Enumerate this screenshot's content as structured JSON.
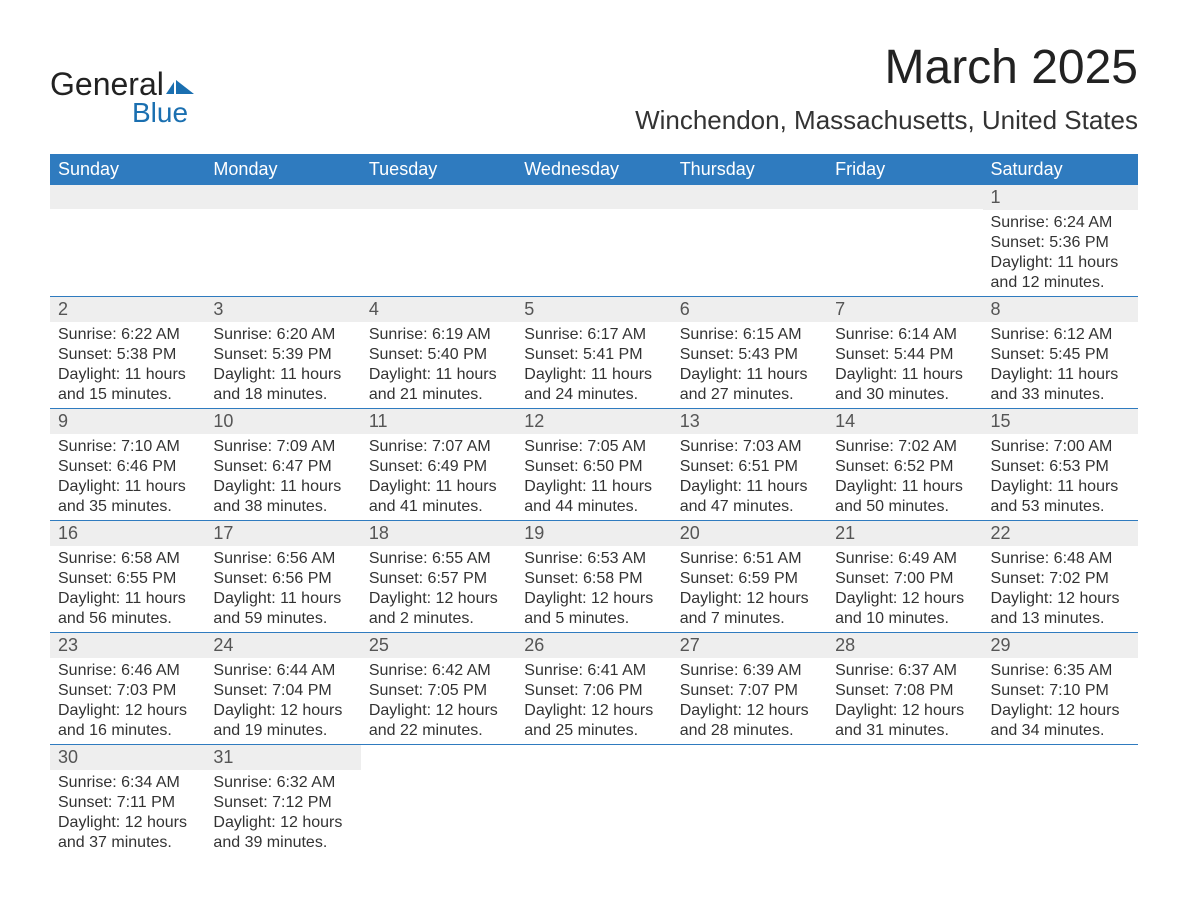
{
  "logo": {
    "text_general": "General",
    "text_blue": "Blue",
    "flag_color": "#1a6fb0"
  },
  "title": "March 2025",
  "location": "Winchendon, Massachusetts, United States",
  "day_headers": [
    "Sunday",
    "Monday",
    "Tuesday",
    "Wednesday",
    "Thursday",
    "Friday",
    "Saturday"
  ],
  "colors": {
    "header_bg": "#2f7bbf",
    "header_text": "#ffffff",
    "row_border": "#2f7bbf",
    "daynum_bg": "#eeeeee",
    "body_text": "#333333"
  },
  "weeks": [
    [
      {
        "day": "",
        "lines": []
      },
      {
        "day": "",
        "lines": []
      },
      {
        "day": "",
        "lines": []
      },
      {
        "day": "",
        "lines": []
      },
      {
        "day": "",
        "lines": []
      },
      {
        "day": "",
        "lines": []
      },
      {
        "day": "1",
        "lines": [
          "Sunrise: 6:24 AM",
          "Sunset: 5:36 PM",
          "Daylight: 11 hours and 12 minutes."
        ]
      }
    ],
    [
      {
        "day": "2",
        "lines": [
          "Sunrise: 6:22 AM",
          "Sunset: 5:38 PM",
          "Daylight: 11 hours and 15 minutes."
        ]
      },
      {
        "day": "3",
        "lines": [
          "Sunrise: 6:20 AM",
          "Sunset: 5:39 PM",
          "Daylight: 11 hours and 18 minutes."
        ]
      },
      {
        "day": "4",
        "lines": [
          "Sunrise: 6:19 AM",
          "Sunset: 5:40 PM",
          "Daylight: 11 hours and 21 minutes."
        ]
      },
      {
        "day": "5",
        "lines": [
          "Sunrise: 6:17 AM",
          "Sunset: 5:41 PM",
          "Daylight: 11 hours and 24 minutes."
        ]
      },
      {
        "day": "6",
        "lines": [
          "Sunrise: 6:15 AM",
          "Sunset: 5:43 PM",
          "Daylight: 11 hours and 27 minutes."
        ]
      },
      {
        "day": "7",
        "lines": [
          "Sunrise: 6:14 AM",
          "Sunset: 5:44 PM",
          "Daylight: 11 hours and 30 minutes."
        ]
      },
      {
        "day": "8",
        "lines": [
          "Sunrise: 6:12 AM",
          "Sunset: 5:45 PM",
          "Daylight: 11 hours and 33 minutes."
        ]
      }
    ],
    [
      {
        "day": "9",
        "lines": [
          "Sunrise: 7:10 AM",
          "Sunset: 6:46 PM",
          "Daylight: 11 hours and 35 minutes."
        ]
      },
      {
        "day": "10",
        "lines": [
          "Sunrise: 7:09 AM",
          "Sunset: 6:47 PM",
          "Daylight: 11 hours and 38 minutes."
        ]
      },
      {
        "day": "11",
        "lines": [
          "Sunrise: 7:07 AM",
          "Sunset: 6:49 PM",
          "Daylight: 11 hours and 41 minutes."
        ]
      },
      {
        "day": "12",
        "lines": [
          "Sunrise: 7:05 AM",
          "Sunset: 6:50 PM",
          "Daylight: 11 hours and 44 minutes."
        ]
      },
      {
        "day": "13",
        "lines": [
          "Sunrise: 7:03 AM",
          "Sunset: 6:51 PM",
          "Daylight: 11 hours and 47 minutes."
        ]
      },
      {
        "day": "14",
        "lines": [
          "Sunrise: 7:02 AM",
          "Sunset: 6:52 PM",
          "Daylight: 11 hours and 50 minutes."
        ]
      },
      {
        "day": "15",
        "lines": [
          "Sunrise: 7:00 AM",
          "Sunset: 6:53 PM",
          "Daylight: 11 hours and 53 minutes."
        ]
      }
    ],
    [
      {
        "day": "16",
        "lines": [
          "Sunrise: 6:58 AM",
          "Sunset: 6:55 PM",
          "Daylight: 11 hours and 56 minutes."
        ]
      },
      {
        "day": "17",
        "lines": [
          "Sunrise: 6:56 AM",
          "Sunset: 6:56 PM",
          "Daylight: 11 hours and 59 minutes."
        ]
      },
      {
        "day": "18",
        "lines": [
          "Sunrise: 6:55 AM",
          "Sunset: 6:57 PM",
          "Daylight: 12 hours and 2 minutes."
        ]
      },
      {
        "day": "19",
        "lines": [
          "Sunrise: 6:53 AM",
          "Sunset: 6:58 PM",
          "Daylight: 12 hours and 5 minutes."
        ]
      },
      {
        "day": "20",
        "lines": [
          "Sunrise: 6:51 AM",
          "Sunset: 6:59 PM",
          "Daylight: 12 hours and 7 minutes."
        ]
      },
      {
        "day": "21",
        "lines": [
          "Sunrise: 6:49 AM",
          "Sunset: 7:00 PM",
          "Daylight: 12 hours and 10 minutes."
        ]
      },
      {
        "day": "22",
        "lines": [
          "Sunrise: 6:48 AM",
          "Sunset: 7:02 PM",
          "Daylight: 12 hours and 13 minutes."
        ]
      }
    ],
    [
      {
        "day": "23",
        "lines": [
          "Sunrise: 6:46 AM",
          "Sunset: 7:03 PM",
          "Daylight: 12 hours and 16 minutes."
        ]
      },
      {
        "day": "24",
        "lines": [
          "Sunrise: 6:44 AM",
          "Sunset: 7:04 PM",
          "Daylight: 12 hours and 19 minutes."
        ]
      },
      {
        "day": "25",
        "lines": [
          "Sunrise: 6:42 AM",
          "Sunset: 7:05 PM",
          "Daylight: 12 hours and 22 minutes."
        ]
      },
      {
        "day": "26",
        "lines": [
          "Sunrise: 6:41 AM",
          "Sunset: 7:06 PM",
          "Daylight: 12 hours and 25 minutes."
        ]
      },
      {
        "day": "27",
        "lines": [
          "Sunrise: 6:39 AM",
          "Sunset: 7:07 PM",
          "Daylight: 12 hours and 28 minutes."
        ]
      },
      {
        "day": "28",
        "lines": [
          "Sunrise: 6:37 AM",
          "Sunset: 7:08 PM",
          "Daylight: 12 hours and 31 minutes."
        ]
      },
      {
        "day": "29",
        "lines": [
          "Sunrise: 6:35 AM",
          "Sunset: 7:10 PM",
          "Daylight: 12 hours and 34 minutes."
        ]
      }
    ],
    [
      {
        "day": "30",
        "lines": [
          "Sunrise: 6:34 AM",
          "Sunset: 7:11 PM",
          "Daylight: 12 hours and 37 minutes."
        ]
      },
      {
        "day": "31",
        "lines": [
          "Sunrise: 6:32 AM",
          "Sunset: 7:12 PM",
          "Daylight: 12 hours and 39 minutes."
        ]
      },
      {
        "day": "",
        "lines": []
      },
      {
        "day": "",
        "lines": []
      },
      {
        "day": "",
        "lines": []
      },
      {
        "day": "",
        "lines": []
      },
      {
        "day": "",
        "lines": []
      }
    ]
  ]
}
